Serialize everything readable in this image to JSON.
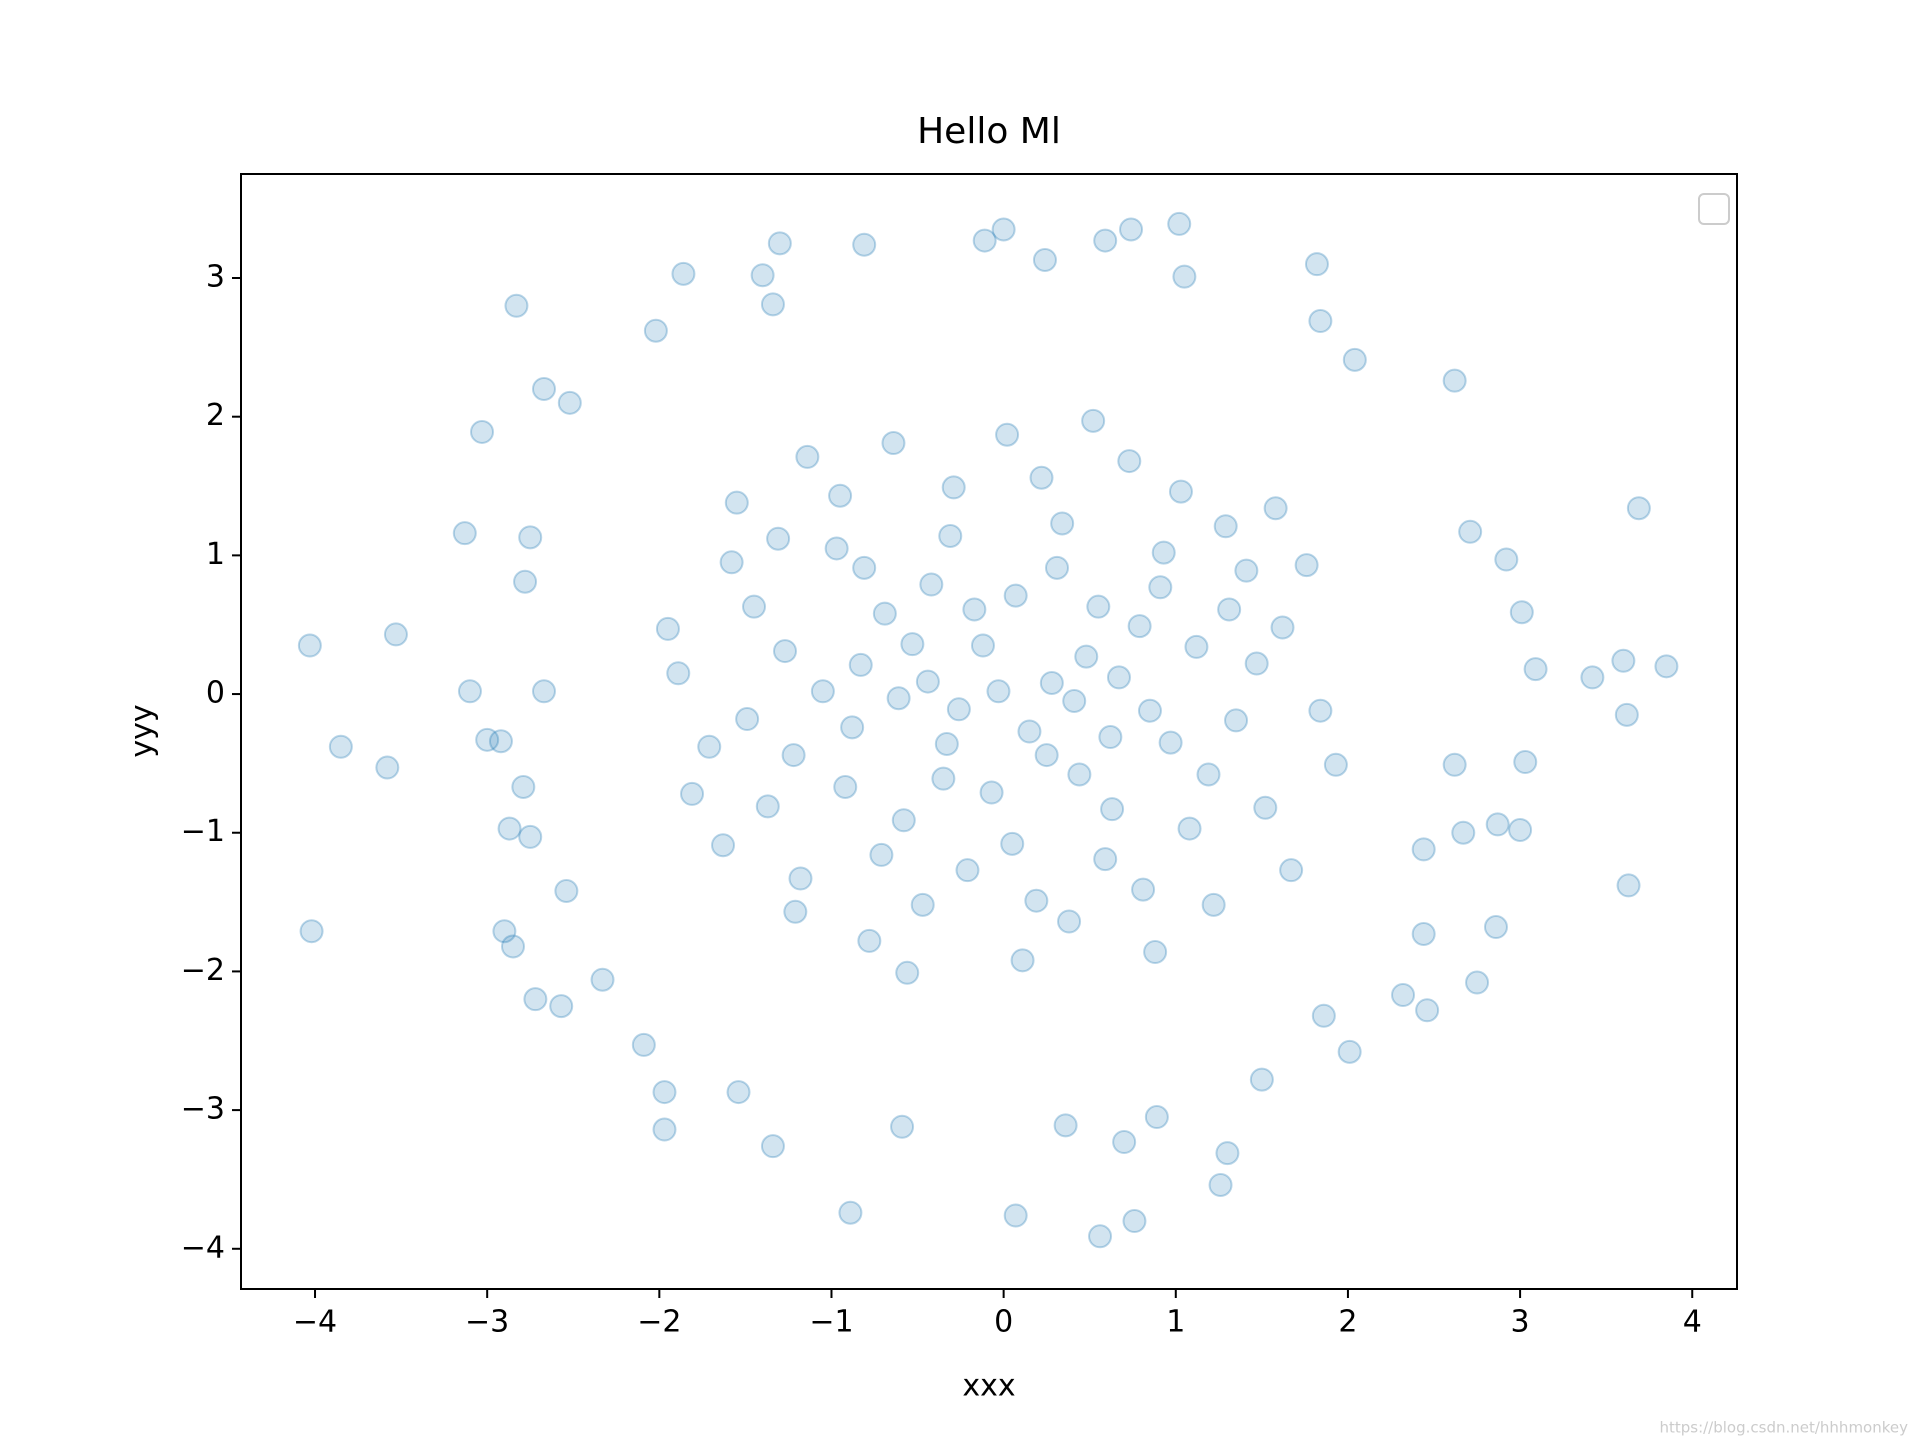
{
  "chart_data": {
    "type": "scatter",
    "title": "Hello Ml",
    "x_label": "xxx",
    "y_label": "yyy",
    "color": "#1f77b4",
    "alpha": 0.2,
    "legend": "upper right",
    "watermark": "https://blog.csdn.net/hhhmonkey",
    "xlim": [
      -4.43,
      4.26
    ],
    "ylim": [
      -4.29,
      3.75
    ],
    "xticks": [
      {
        "value": -4,
        "label": "−4"
      },
      {
        "value": -3,
        "label": "−3"
      },
      {
        "value": -2,
        "label": "−2"
      },
      {
        "value": -1,
        "label": "−1"
      },
      0,
      1,
      2,
      3,
      4
    ],
    "yticks": [
      {
        "value": -4,
        "label": "−4"
      },
      {
        "value": -3,
        "label": "−3"
      },
      {
        "value": -2,
        "label": "−2"
      },
      {
        "value": -1,
        "label": "−1"
      },
      0,
      1,
      2,
      3
    ],
    "x": [
      -4.03,
      -3.53,
      -3.85,
      -3.58,
      -4.02,
      -3.13,
      -3.03,
      -2.83,
      -3.1,
      -3.0,
      -2.92,
      -2.87,
      -2.9,
      -2.85,
      -2.72,
      -2.57,
      -2.33,
      -2.09,
      -1.97,
      -1.34,
      -0.89,
      0.07,
      0.56,
      0.76,
      1.26,
      1.3,
      0.7,
      0.89,
      1.86,
      2.32,
      2.46,
      2.75,
      2.86,
      2.44,
      3.63,
      3.0,
      2.87,
      3.62,
      3.42,
      3.6,
      3.85,
      3.09,
      3.01,
      3.69,
      2.62,
      2.04,
      1.82,
      1.02,
      1.05,
      0.74,
      0.59,
      0.0,
      -0.11,
      0.24,
      -0.81,
      -1.3,
      -1.86,
      -1.4,
      -1.34,
      -2.67,
      -2.02,
      1.84,
      2.92,
      2.71,
      2.62,
      3.03,
      2.67,
      2.44,
      -2.54,
      -2.79,
      -2.75,
      -2.78,
      -2.75,
      -2.67,
      -2.52,
      -1.97,
      -1.54,
      -0.59,
      0.36,
      1.5,
      2.01,
      -0.12,
      0.44,
      -0.83,
      0.91,
      -1.22,
      1.35,
      0.05,
      -0.31,
      0.67,
      -0.58,
      1.08,
      -1.45,
      0.22,
      -0.95,
      1.62,
      -1.71,
      0.38,
      -0.47,
      1.29,
      -1.18,
      0.81,
      -0.03,
      0.15,
      -0.26,
      0.55,
      -0.69,
      0.97,
      -0.88,
      0.31,
      -0.42,
      1.52,
      -1.58,
      0.73,
      -0.78,
      1.12,
      -1.05,
      0.02,
      0.11,
      1.84,
      -1.89,
      0.63,
      -0.35,
      0.48,
      -0.17,
      1.41,
      -1.31,
      0.88,
      -0.64,
      1.67,
      -1.63,
      0.25,
      -0.53,
      0.79,
      -0.92,
      1.19,
      -1.27,
      0.34,
      -0.21,
      1.03,
      -1.14,
      0.59,
      -0.71,
      1.76,
      -1.81,
      0.07,
      -0.07,
      0.41,
      -0.44,
      1.47,
      -1.49,
      0.93,
      -0.97,
      0.19,
      -0.29,
      1.22,
      -1.21,
      1.58,
      -1.55,
      0.52,
      -0.56,
      1.93,
      -1.95,
      0.28,
      -0.33,
      0.62,
      -0.61,
      0.85,
      -0.81,
      1.31,
      -1.37
    ],
    "values": [
      0.35,
      0.43,
      -0.38,
      -0.53,
      -1.71,
      1.16,
      1.89,
      2.8,
      0.02,
      -0.33,
      -0.34,
      -0.97,
      -1.71,
      -1.82,
      -2.2,
      -2.25,
      -2.06,
      -2.53,
      -3.14,
      -3.26,
      -3.74,
      -3.76,
      -3.91,
      -3.8,
      -3.54,
      -3.31,
      -3.23,
      -3.05,
      -2.32,
      -2.17,
      -2.28,
      -2.08,
      -1.68,
      -1.73,
      -1.38,
      -0.98,
      -0.94,
      -0.15,
      0.12,
      0.24,
      0.2,
      0.18,
      0.59,
      1.34,
      2.26,
      2.41,
      3.1,
      3.39,
      3.01,
      3.35,
      3.27,
      3.35,
      3.27,
      3.13,
      3.24,
      3.25,
      3.03,
      3.02,
      2.81,
      2.2,
      2.62,
      2.69,
      0.97,
      1.17,
      -0.51,
      -0.49,
      -1.0,
      -1.12,
      -1.42,
      -0.67,
      -1.03,
      0.81,
      1.13,
      0.02,
      2.1,
      -2.87,
      -2.87,
      -3.12,
      -3.11,
      -2.78,
      -2.58,
      0.35,
      -0.58,
      0.21,
      0.77,
      -0.44,
      -0.19,
      -1.08,
      1.14,
      0.12,
      -0.91,
      -0.97,
      0.63,
      1.56,
      1.43,
      0.48,
      -0.38,
      -1.64,
      -1.52,
      1.21,
      -1.33,
      -1.41,
      0.02,
      -0.27,
      -0.11,
      0.63,
      0.58,
      -0.35,
      -0.24,
      0.91,
      0.79,
      -0.82,
      0.95,
      1.68,
      -1.78,
      0.34,
      0.02,
      1.87,
      -1.92,
      -0.12,
      0.15,
      -0.83,
      -0.61,
      0.27,
      0.61,
      0.89,
      1.12,
      -1.86,
      1.81,
      -1.27,
      -1.09,
      -0.44,
      0.36,
      0.49,
      -0.67,
      -0.58,
      0.31,
      1.23,
      -1.27,
      1.46,
      1.71,
      -1.19,
      -1.16,
      0.93,
      -0.72,
      0.71,
      -0.71,
      -0.05,
      0.09,
      0.22,
      -0.18,
      1.02,
      1.05,
      -1.49,
      1.49,
      -1.52,
      -1.57,
      1.34,
      1.38,
      1.97,
      -2.01,
      -0.51,
      0.47,
      0.08,
      -0.36,
      -0.31,
      -0.03,
      -0.12,
      0.91,
      0.61,
      -0.81
    ]
  }
}
